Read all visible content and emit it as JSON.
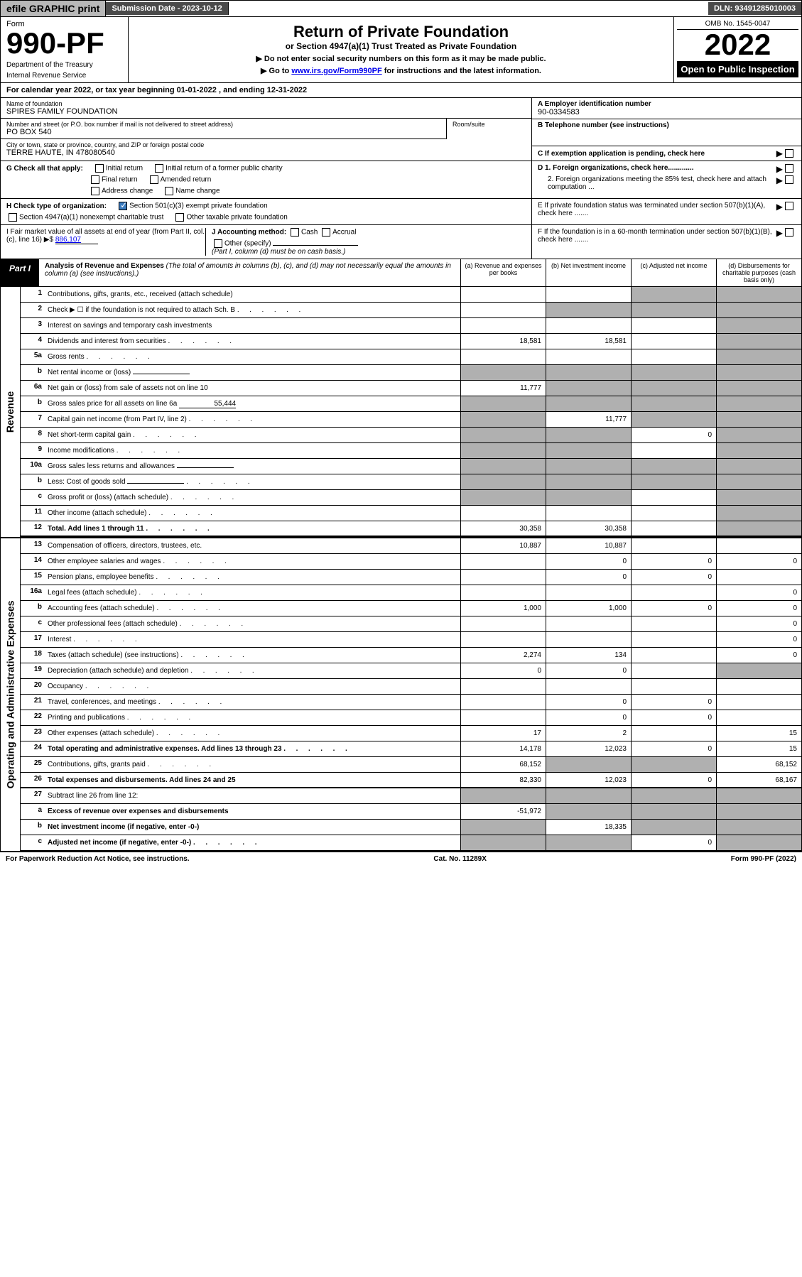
{
  "top": {
    "efile": "efile GRAPHIC print",
    "sub_date_label": "Submission Date - 2023-10-12",
    "dln": "DLN: 93491285010003"
  },
  "header": {
    "form_label": "Form",
    "form_num": "990-PF",
    "dept": "Department of the Treasury",
    "irs": "Internal Revenue Service",
    "title": "Return of Private Foundation",
    "subtitle": "or Section 4947(a)(1) Trust Treated as Private Foundation",
    "instr1": "▶ Do not enter social security numbers on this form as it may be made public.",
    "instr2": "▶ Go to ",
    "instr2_link": "www.irs.gov/Form990PF",
    "instr2_tail": " for instructions and the latest information.",
    "omb": "OMB No. 1545-0047",
    "year": "2022",
    "open": "Open to Public Inspection"
  },
  "cal_year": "For calendar year 2022, or tax year beginning 01-01-2022                           , and ending 12-31-2022",
  "foundation": {
    "name_label": "Name of foundation",
    "name": "SPIRES FAMILY FOUNDATION",
    "addr_label": "Number and street (or P.O. box number if mail is not delivered to street address)",
    "addr": "PO BOX 540",
    "room_label": "Room/suite",
    "city_label": "City or town, state or province, country, and ZIP or foreign postal code",
    "city": "TERRE HAUTE, IN  478080540",
    "ein_label": "A Employer identification number",
    "ein": "90-0334583",
    "phone_label": "B Telephone number (see instructions)",
    "c_label": "C If exemption application is pending, check here",
    "d1": "D 1. Foreign organizations, check here.............",
    "d2": "2. Foreign organizations meeting the 85% test, check here and attach computation ...",
    "e": "E  If private foundation status was terminated under section 507(b)(1)(A), check here .......",
    "f": "F  If the foundation is in a 60-month termination under section 507(b)(1)(B), check here ......."
  },
  "g": {
    "label": "G Check all that apply:",
    "o1": "Initial return",
    "o2": "Initial return of a former public charity",
    "o3": "Final return",
    "o4": "Amended return",
    "o5": "Address change",
    "o6": "Name change"
  },
  "h": {
    "label": "H Check type of organization:",
    "o1": "Section 501(c)(3) exempt private foundation",
    "o2": "Section 4947(a)(1) nonexempt charitable trust",
    "o3": "Other taxable private foundation"
  },
  "i": {
    "label": "I Fair market value of all assets at end of year (from Part II, col. (c), line 16) ▶$",
    "val": "886,107"
  },
  "j": {
    "label": "J Accounting method:",
    "o1": "Cash",
    "o2": "Accrual",
    "o3": "Other (specify)",
    "note": "(Part I, column (d) must be on cash basis.)"
  },
  "part1": {
    "tab": "Part I",
    "title": "Analysis of Revenue and Expenses",
    "note": " (The total of amounts in columns (b), (c), and (d) may not necessarily equal the amounts in column (a) (see instructions).)",
    "ca": "(a)   Revenue and expenses per books",
    "cb": "(b)   Net investment income",
    "cc": "(c)   Adjusted net income",
    "cd": "(d)   Disbursements for charitable purposes (cash basis only)"
  },
  "sections": {
    "rev": "Revenue",
    "exp": "Operating and Administrative Expenses"
  },
  "rows": [
    {
      "n": "1",
      "d": "Contributions, gifts, grants, etc., received (attach schedule)",
      "a": "",
      "b": "",
      "c": "s",
      "dd": "s"
    },
    {
      "n": "2",
      "d": "Check ▶ ☐ if the foundation is not required to attach Sch. B",
      "a": "",
      "b": "s",
      "c": "s",
      "dd": "s",
      "dots": true
    },
    {
      "n": "3",
      "d": "Interest on savings and temporary cash investments",
      "a": "",
      "b": "",
      "c": "",
      "dd": "s"
    },
    {
      "n": "4",
      "d": "Dividends and interest from securities",
      "a": "18,581",
      "b": "18,581",
      "c": "",
      "dd": "s",
      "dots": true
    },
    {
      "n": "5a",
      "d": "Gross rents",
      "a": "",
      "b": "",
      "c": "",
      "dd": "s",
      "dots": true
    },
    {
      "n": "b",
      "d": "Net rental income or (loss)",
      "a": "s",
      "b": "s",
      "c": "s",
      "dd": "s",
      "inline": true
    },
    {
      "n": "6a",
      "d": "Net gain or (loss) from sale of assets not on line 10",
      "a": "11,777",
      "b": "s",
      "c": "s",
      "dd": "s"
    },
    {
      "n": "b",
      "d": "Gross sales price for all assets on line 6a",
      "a": "s",
      "b": "s",
      "c": "s",
      "dd": "s",
      "inline": true,
      "inlineval": "55,444"
    },
    {
      "n": "7",
      "d": "Capital gain net income (from Part IV, line 2)",
      "a": "s",
      "b": "11,777",
      "c": "s",
      "dd": "s",
      "dots": true
    },
    {
      "n": "8",
      "d": "Net short-term capital gain",
      "a": "s",
      "b": "s",
      "c": "0",
      "dd": "s",
      "dots": true
    },
    {
      "n": "9",
      "d": "Income modifications",
      "a": "s",
      "b": "s",
      "c": "",
      "dd": "s",
      "dots": true
    },
    {
      "n": "10a",
      "d": "Gross sales less returns and allowances",
      "a": "s",
      "b": "s",
      "c": "s",
      "dd": "s",
      "inline": true
    },
    {
      "n": "b",
      "d": "Less: Cost of goods sold",
      "a": "s",
      "b": "s",
      "c": "s",
      "dd": "s",
      "inline": true,
      "dots": true
    },
    {
      "n": "c",
      "d": "Gross profit or (loss) (attach schedule)",
      "a": "s",
      "b": "s",
      "c": "",
      "dd": "s",
      "dots": true
    },
    {
      "n": "11",
      "d": "Other income (attach schedule)",
      "a": "",
      "b": "",
      "c": "",
      "dd": "s",
      "dots": true
    },
    {
      "n": "12",
      "d": "Total. Add lines 1 through 11",
      "a": "30,358",
      "b": "30,358",
      "c": "",
      "dd": "s",
      "dots": true,
      "bold": true,
      "end": true
    },
    {
      "n": "13",
      "d": "Compensation of officers, directors, trustees, etc.",
      "a": "10,887",
      "b": "10,887",
      "c": "",
      "dd": ""
    },
    {
      "n": "14",
      "d": "Other employee salaries and wages",
      "a": "",
      "b": "0",
      "c": "0",
      "dd": "0",
      "dots": true
    },
    {
      "n": "15",
      "d": "Pension plans, employee benefits",
      "a": "",
      "b": "0",
      "c": "0",
      "dd": "",
      "dots": true
    },
    {
      "n": "16a",
      "d": "Legal fees (attach schedule)",
      "a": "",
      "b": "",
      "c": "",
      "dd": "0",
      "dots": true
    },
    {
      "n": "b",
      "d": "Accounting fees (attach schedule)",
      "a": "1,000",
      "b": "1,000",
      "c": "0",
      "dd": "0",
      "dots": true
    },
    {
      "n": "c",
      "d": "Other professional fees (attach schedule)",
      "a": "",
      "b": "",
      "c": "",
      "dd": "0",
      "dots": true
    },
    {
      "n": "17",
      "d": "Interest",
      "a": "",
      "b": "",
      "c": "",
      "dd": "0",
      "dots": true
    },
    {
      "n": "18",
      "d": "Taxes (attach schedule) (see instructions)",
      "a": "2,274",
      "b": "134",
      "c": "",
      "dd": "0",
      "dots": true
    },
    {
      "n": "19",
      "d": "Depreciation (attach schedule) and depletion",
      "a": "0",
      "b": "0",
      "c": "",
      "dd": "s",
      "dots": true
    },
    {
      "n": "20",
      "d": "Occupancy",
      "a": "",
      "b": "",
      "c": "",
      "dd": "",
      "dots": true
    },
    {
      "n": "21",
      "d": "Travel, conferences, and meetings",
      "a": "",
      "b": "0",
      "c": "0",
      "dd": "",
      "dots": true
    },
    {
      "n": "22",
      "d": "Printing and publications",
      "a": "",
      "b": "0",
      "c": "0",
      "dd": "",
      "dots": true
    },
    {
      "n": "23",
      "d": "Other expenses (attach schedule)",
      "a": "17",
      "b": "2",
      "c": "",
      "dd": "15",
      "dots": true
    },
    {
      "n": "24",
      "d": "Total operating and administrative expenses. Add lines 13 through 23",
      "a": "14,178",
      "b": "12,023",
      "c": "0",
      "dd": "15",
      "dots": true,
      "bold": true
    },
    {
      "n": "25",
      "d": "Contributions, gifts, grants paid",
      "a": "68,152",
      "b": "s",
      "c": "s",
      "dd": "68,152",
      "dots": true
    },
    {
      "n": "26",
      "d": "Total expenses and disbursements. Add lines 24 and 25",
      "a": "82,330",
      "b": "12,023",
      "c": "0",
      "dd": "68,167",
      "bold": true,
      "end": true
    },
    {
      "n": "27",
      "d": "Subtract line 26 from line 12:",
      "a": "s",
      "b": "s",
      "c": "s",
      "dd": "s"
    },
    {
      "n": "a",
      "d": "Excess of revenue over expenses and disbursements",
      "a": "-51,972",
      "b": "s",
      "c": "s",
      "dd": "s",
      "bold": true
    },
    {
      "n": "b",
      "d": "Net investment income (if negative, enter -0-)",
      "a": "s",
      "b": "18,335",
      "c": "s",
      "dd": "s",
      "bold": true
    },
    {
      "n": "c",
      "d": "Adjusted net income (if negative, enter -0-)",
      "a": "s",
      "b": "s",
      "c": "0",
      "dd": "s",
      "bold": true,
      "dots": true
    }
  ],
  "footer": {
    "left": "For Paperwork Reduction Act Notice, see instructions.",
    "mid": "Cat. No. 11289X",
    "right": "Form 990-PF (2022)"
  }
}
